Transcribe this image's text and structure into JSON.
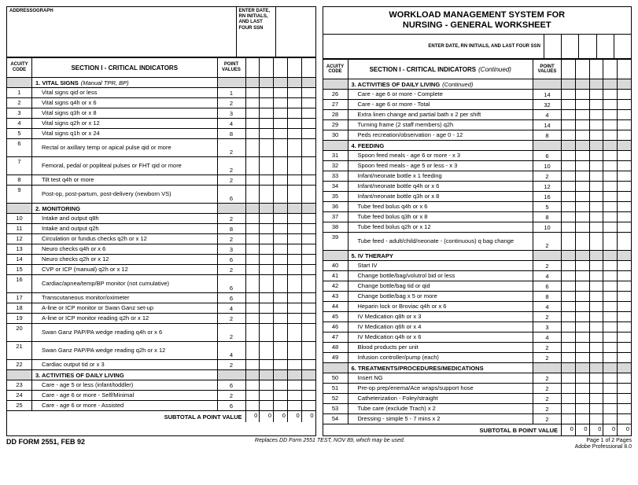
{
  "left": {
    "addressograph": "ADDRESSOGRAPH",
    "enter_box": "ENTER DATE, RN INITIALS, AND LAST FOUR SSN",
    "section_header": {
      "acuity": "ACUITY CODE",
      "title": "SECTION I - CRITICAL INDICATORS",
      "points": "POINT VALUES"
    },
    "groups": [
      {
        "type": "cat",
        "label": "1. VITAL SIGNS",
        "ital": "(Manual TPR, BP)"
      },
      {
        "type": "row",
        "n": "1",
        "d": "Vital signs qid or less",
        "p": "1"
      },
      {
        "type": "row",
        "n": "2",
        "d": "Vital signs q4h or x 6",
        "p": "2"
      },
      {
        "type": "row",
        "n": "3",
        "d": "Vital signs q3h or x 8",
        "p": "3"
      },
      {
        "type": "row",
        "n": "4",
        "d": "Vital signs q2h or x 12",
        "p": "4"
      },
      {
        "type": "row",
        "n": "5",
        "d": "Vital signs q1h or x 24",
        "p": "8"
      },
      {
        "type": "row",
        "n": "6",
        "d": "Rectal or axillary temp or apical pulse qid or more",
        "p": "2",
        "tall": true
      },
      {
        "type": "row",
        "n": "7",
        "d": "Femoral, pedal or popliteal pulses or FHT qid or more",
        "p": "2",
        "tall": true
      },
      {
        "type": "row",
        "n": "8",
        "d": "Tilt test q4h or more",
        "p": "2"
      },
      {
        "type": "row",
        "n": "9",
        "d": "Post-op, post-partum, post-delivery (newborn VS)",
        "p": "6",
        "tall": true
      },
      {
        "type": "cat",
        "label": "2. MONITORING"
      },
      {
        "type": "row",
        "n": "10",
        "d": "Intake and output q8h",
        "p": "2"
      },
      {
        "type": "row",
        "n": "11",
        "d": "Intake and output q2h",
        "p": "8"
      },
      {
        "type": "row",
        "n": "12",
        "d": "Circulation or fundus checks q2h or x 12",
        "p": "2"
      },
      {
        "type": "row",
        "n": "13",
        "d": "Neuro checks q4h or x 6",
        "p": "3"
      },
      {
        "type": "row",
        "n": "14",
        "d": "Neuro checks q2h or x 12",
        "p": "6"
      },
      {
        "type": "row",
        "n": "15",
        "d": "CVP or ICP (manual) q2h or x 12",
        "p": "2"
      },
      {
        "type": "row",
        "n": "16",
        "d": "Cardiac/apnea/temp/BP monitor (not cumulative)",
        "p": "6",
        "tall": true
      },
      {
        "type": "row",
        "n": "17",
        "d": "Transcutaneous monitor/oximeter",
        "p": "6"
      },
      {
        "type": "row",
        "n": "18",
        "d": "A-line or ICP monitor or Swan Ganz set-up",
        "p": "4"
      },
      {
        "type": "row",
        "n": "19",
        "d": "A-line or ICP monitor reading q2h or x 12",
        "p": "2"
      },
      {
        "type": "row",
        "n": "20",
        "d": "Swan Ganz PAP/PA wedge reading q4h or x 6",
        "p": "2",
        "tall": true
      },
      {
        "type": "row",
        "n": "21",
        "d": "Swan Ganz PAP/PA wedge reading q2h or x 12",
        "p": "4",
        "tall": true
      },
      {
        "type": "row",
        "n": "22",
        "d": "Cardiac output tid or x 3",
        "p": "2"
      },
      {
        "type": "cat",
        "label": "3. ACTIVITIES OF DAILY LIVING"
      },
      {
        "type": "row",
        "n": "23",
        "d": "Care - age 5 or less (infant/toddler)",
        "p": "6"
      },
      {
        "type": "row",
        "n": "24",
        "d": "Care - age 6 or more - Self/Minimal",
        "p": "2"
      },
      {
        "type": "row",
        "n": "25",
        "d": "Care - age 6 or more - Assisted",
        "p": "6"
      }
    ],
    "subtotal": "SUBTOTAL A POINT VALUE"
  },
  "right": {
    "title1": "WORKLOAD MANAGEMENT SYSTEM FOR",
    "title2": "NURSING - GENERAL WORKSHEET",
    "enter_label": "ENTER DATE, RN INITIALS, AND LAST FOUR SSN",
    "section_header": {
      "acuity": "ACUITY CODE",
      "title": "SECTION I - CRITICAL INDICATORS",
      "ital": "(Continued)",
      "points": "POINT VALUES"
    },
    "groups": [
      {
        "type": "cat",
        "label": "3. ACTIVITIES OF DAILY LIVING",
        "ital": "(Continued)"
      },
      {
        "type": "row",
        "n": "26",
        "d": "Care - age 6 or more - Complete",
        "p": "14"
      },
      {
        "type": "row",
        "n": "27",
        "d": "Care - age 6 or more - Total",
        "p": "32"
      },
      {
        "type": "row",
        "n": "28",
        "d": "Extra linen change and partial bath x 2 per shift",
        "p": "4"
      },
      {
        "type": "row",
        "n": "29",
        "d": "Turning frame (2 staff members) q2h",
        "p": "14"
      },
      {
        "type": "row",
        "n": "30",
        "d": "Peds recreation/observation - age 0 - 12",
        "p": "8"
      },
      {
        "type": "cat",
        "label": "4. FEEDING"
      },
      {
        "type": "row",
        "n": "31",
        "d": "Spoon feed meals - age 6 or more - x 3",
        "p": "6"
      },
      {
        "type": "row",
        "n": "32",
        "d": "Spoon feed meals - age 5 or less - x 3",
        "p": "10"
      },
      {
        "type": "row",
        "n": "33",
        "d": "Infant/neonate bottle x 1 feeding",
        "p": "2"
      },
      {
        "type": "row",
        "n": "34",
        "d": "Infant/neonate bottle q4h or x 6",
        "p": "12"
      },
      {
        "type": "row",
        "n": "35",
        "d": "Infant/neonate bottle q3h or x 8",
        "p": "16"
      },
      {
        "type": "row",
        "n": "36",
        "d": "Tube feed bolus q4h or x 6",
        "p": "5"
      },
      {
        "type": "row",
        "n": "37",
        "d": "Tube feed bolus q3h or x 8",
        "p": "8"
      },
      {
        "type": "row",
        "n": "38",
        "d": "Tube feed bolus q2h or x 12",
        "p": "10"
      },
      {
        "type": "row",
        "n": "39",
        "d": "Tube feed - adult/child/neonate - (continuous) q bag change",
        "p": "2",
        "tall": true
      },
      {
        "type": "cat",
        "label": "5. IV THERAPY"
      },
      {
        "type": "row",
        "n": "40",
        "d": "Start IV",
        "p": "2"
      },
      {
        "type": "row",
        "n": "41",
        "d": "Change bottle/bag/volutrol bid or less",
        "p": "4"
      },
      {
        "type": "row",
        "n": "42",
        "d": "Change bottle/bag tid or qid",
        "p": "6"
      },
      {
        "type": "row",
        "n": "43",
        "d": "Change bottle/bag x 5 or more",
        "p": "8"
      },
      {
        "type": "row",
        "n": "44",
        "d": "Heparin lock or Broviac q4h or x 6",
        "p": "4"
      },
      {
        "type": "row",
        "n": "45",
        "d": "IV Medication q8h or x 3",
        "p": "2"
      },
      {
        "type": "row",
        "n": "46",
        "d": "IV Medication q6h or x 4",
        "p": "3"
      },
      {
        "type": "row",
        "n": "47",
        "d": "IV Medication q4h or x 6",
        "p": "4"
      },
      {
        "type": "row",
        "n": "48",
        "d": "Blood products per unit",
        "p": "2"
      },
      {
        "type": "row",
        "n": "49",
        "d": "Infusion controller/pump (each)",
        "p": "2"
      },
      {
        "type": "cat",
        "label": "6. TREATMENTS/PROCEDURES/MEDICATIONS"
      },
      {
        "type": "row",
        "n": "50",
        "d": "Insert NG",
        "p": "2"
      },
      {
        "type": "row",
        "n": "51",
        "d": "Pre-op prep/enema/Ace wraps/support hose",
        "p": "2"
      },
      {
        "type": "row",
        "n": "52",
        "d": "Catheterization - Foley/straight",
        "p": "2"
      },
      {
        "type": "row",
        "n": "53",
        "d": "Tube care (exclude Trach) x 2",
        "p": "2"
      },
      {
        "type": "row",
        "n": "54",
        "d": "Dressing - simple 5 - 7 mins x 2",
        "p": "2"
      }
    ],
    "subtotal": "SUBTOTAL B POINT VALUE"
  },
  "footer": {
    "left": "DD FORM 2551, FEB 92",
    "mid": "Replaces DD Form 2551 TEST, NOV 89, which may be used.",
    "right1": "Page 1 of 2 Pages",
    "right2": "Adobe Professional 8.0"
  },
  "zero": "0"
}
